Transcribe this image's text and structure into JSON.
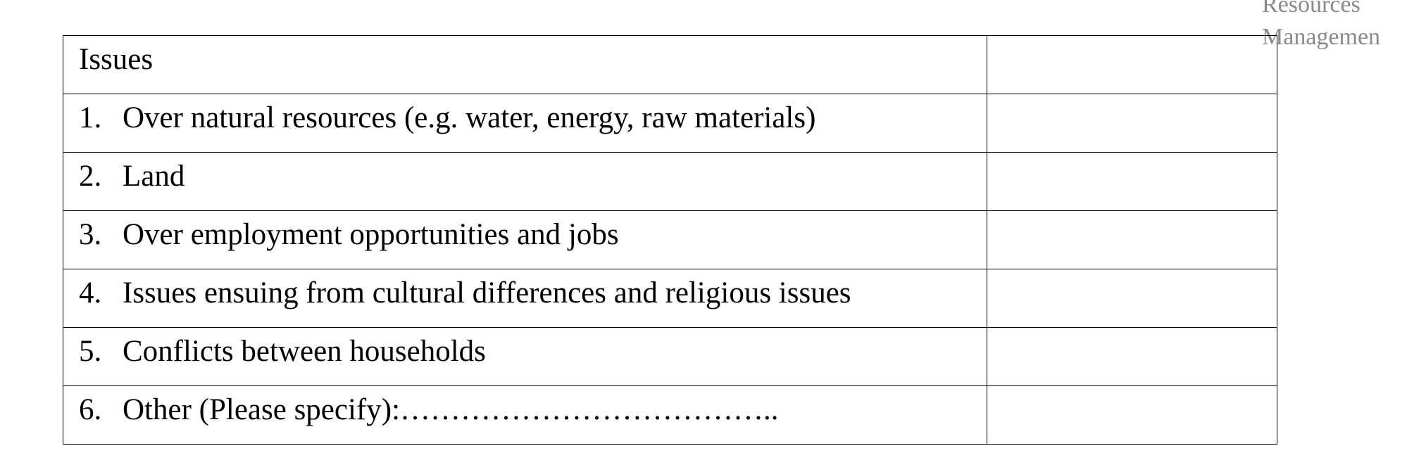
{
  "margin_note": [
    "Resources",
    "Managemen"
  ],
  "table": {
    "header": "Issues",
    "rows": [
      {
        "number": "1.",
        "text": "Over natural resources (e.g. water, energy, raw materials)"
      },
      {
        "number": "2.",
        "text": "Land"
      },
      {
        "number": "3.",
        "text": "Over employment opportunities and jobs"
      },
      {
        "number": "4.",
        "text": "Issues ensuing from cultural differences and religious issues"
      },
      {
        "number": "5.",
        "text": "Conflicts between households"
      },
      {
        "number": "6.",
        "text": "Other (Please specify):……………………………….."
      }
    ]
  }
}
